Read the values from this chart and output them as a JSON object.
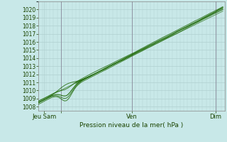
{
  "title": "",
  "xlabel": "Pression niveau de la mer( hPa )",
  "background_color": "#c8e8e8",
  "grid_color": "#b0d0d0",
  "line_color": "#1a6600",
  "ylim": [
    1007.5,
    1021.0
  ],
  "yticks": [
    1008,
    1009,
    1010,
    1011,
    1012,
    1013,
    1014,
    1015,
    1016,
    1017,
    1018,
    1019,
    1020
  ],
  "xlim": [
    0,
    100
  ],
  "xtick_positions": [
    3,
    12,
    50,
    95
  ],
  "xtick_labels": [
    "Jeu Sam",
    "",
    "Ven",
    "Dim"
  ],
  "vline_positions": [
    12,
    50,
    95
  ],
  "num_points": 100,
  "seed": 7
}
